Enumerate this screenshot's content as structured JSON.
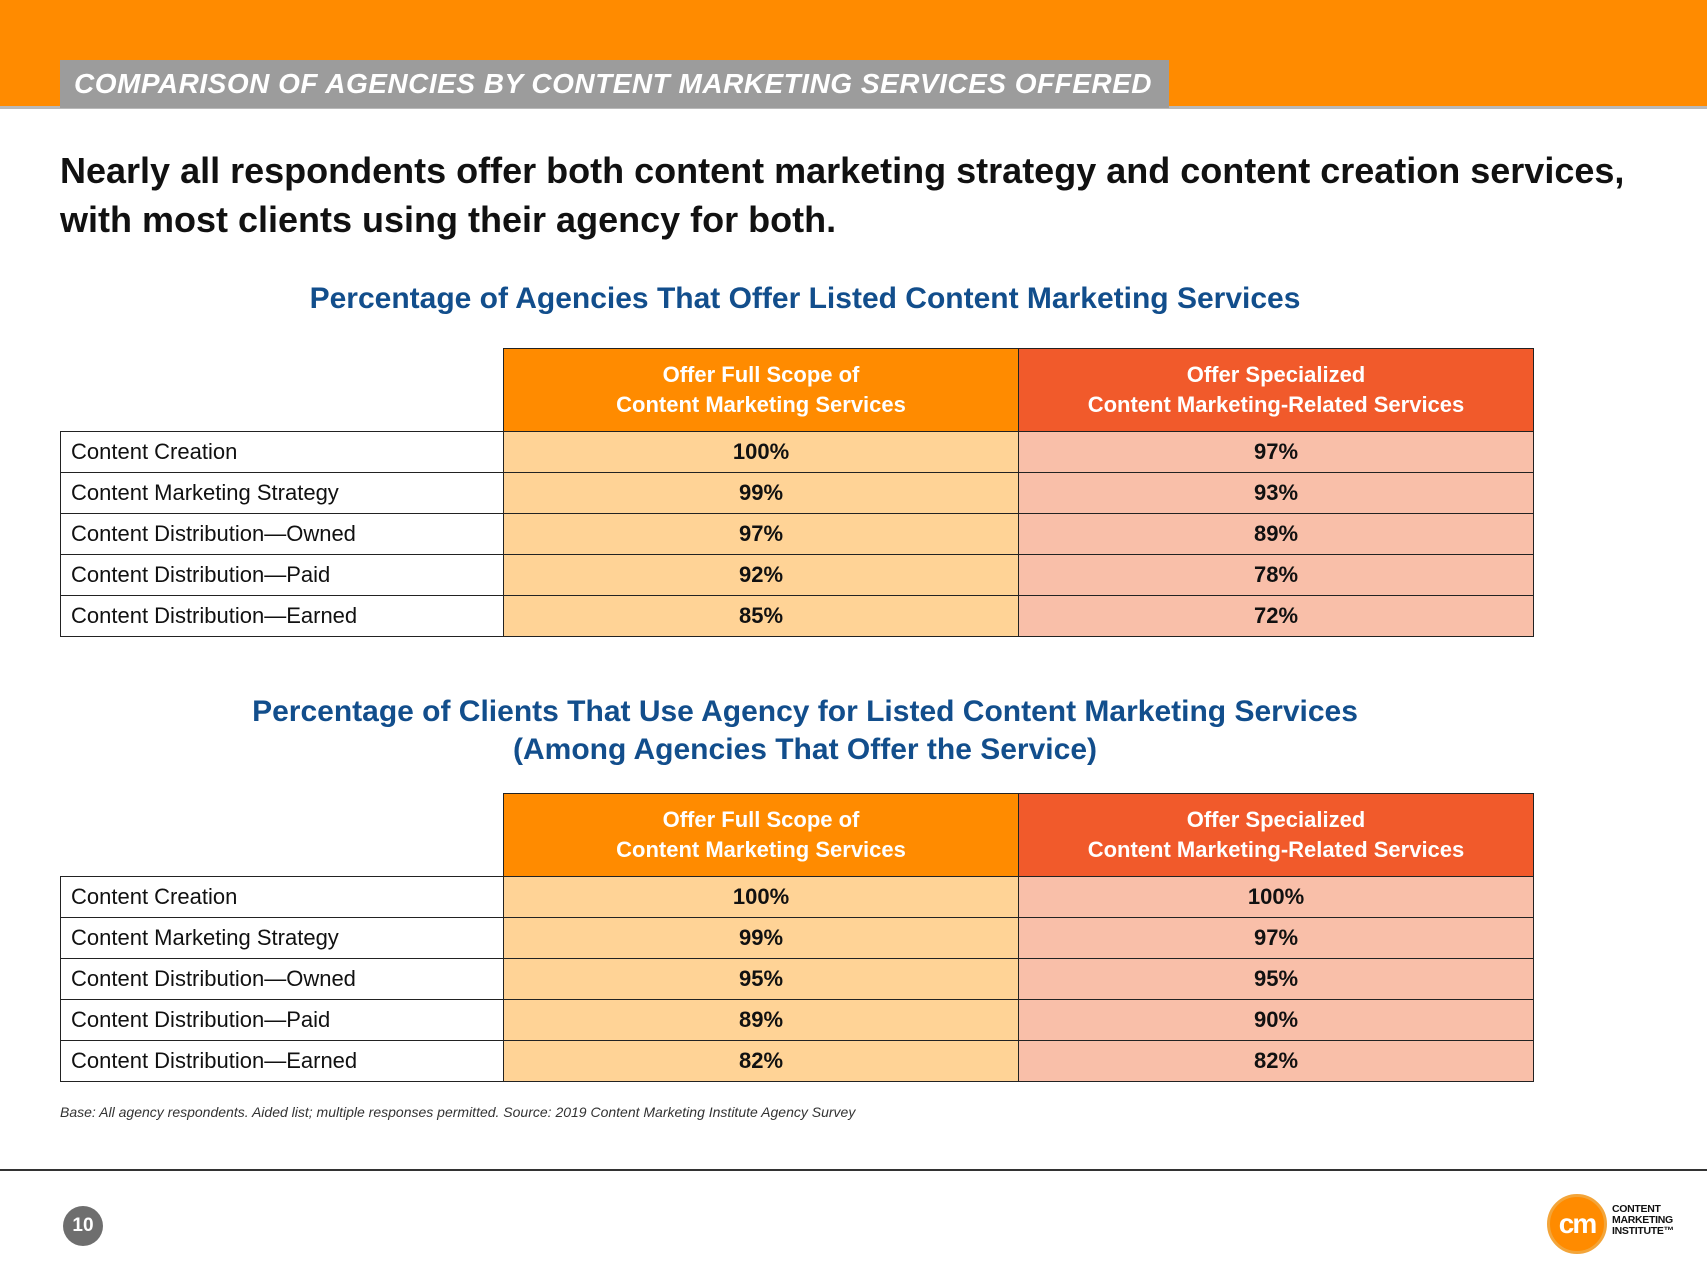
{
  "header": {
    "title": "COMPARISON OF AGENCIES BY CONTENT MARKETING SERVICES OFFERED"
  },
  "headline": {
    "line1": "Nearly all respondents offer both content marketing strategy and content creation services,",
    "line2": "with most clients using their agency for both."
  },
  "table1": {
    "title": "Percentage of Agencies That Offer Listed Content Marketing Services",
    "col_full_line1": "Offer Full Scope of",
    "col_full_line2": "Content Marketing Services",
    "col_spec_line1": "Offer Specialized",
    "col_spec_line2": "Content Marketing-Related Services",
    "rows": [
      {
        "label": "Content Creation",
        "full": "100%",
        "spec": "97%"
      },
      {
        "label": "Content Marketing Strategy",
        "full": "99%",
        "spec": "93%"
      },
      {
        "label": "Content Distribution—Owned",
        "full": "97%",
        "spec": "89%"
      },
      {
        "label": "Content Distribution—Paid",
        "full": "92%",
        "spec": "78%"
      },
      {
        "label": "Content Distribution—Earned",
        "full": "85%",
        "spec": "72%"
      }
    ]
  },
  "table2": {
    "title_line1": "Percentage of Clients That Use Agency for Listed Content Marketing Services",
    "title_line2": "(Among Agencies That Offer the Service)",
    "col_full_line1": "Offer Full Scope of",
    "col_full_line2": "Content Marketing Services",
    "col_spec_line1": "Offer Specialized",
    "col_spec_line2": "Content Marketing-Related Services",
    "rows": [
      {
        "label": "Content Creation",
        "full": "100%",
        "spec": "100%"
      },
      {
        "label": "Content Marketing Strategy",
        "full": "99%",
        "spec": "97%"
      },
      {
        "label": "Content Distribution—Owned",
        "full": "95%",
        "spec": "95%"
      },
      {
        "label": "Content Distribution—Paid",
        "full": "89%",
        "spec": "90%"
      },
      {
        "label": "Content Distribution—Earned",
        "full": "82%",
        "spec": "82%"
      }
    ]
  },
  "footnote": "Base: All agency respondents. Aided list; multiple responses permitted.   Source: 2019 Content Marketing Institute Agency Survey",
  "page_number": "10",
  "logo": {
    "mark": "cm",
    "line1": "CONTENT",
    "line2": "MARKETING",
    "line3": "INSTITUTE™"
  }
}
